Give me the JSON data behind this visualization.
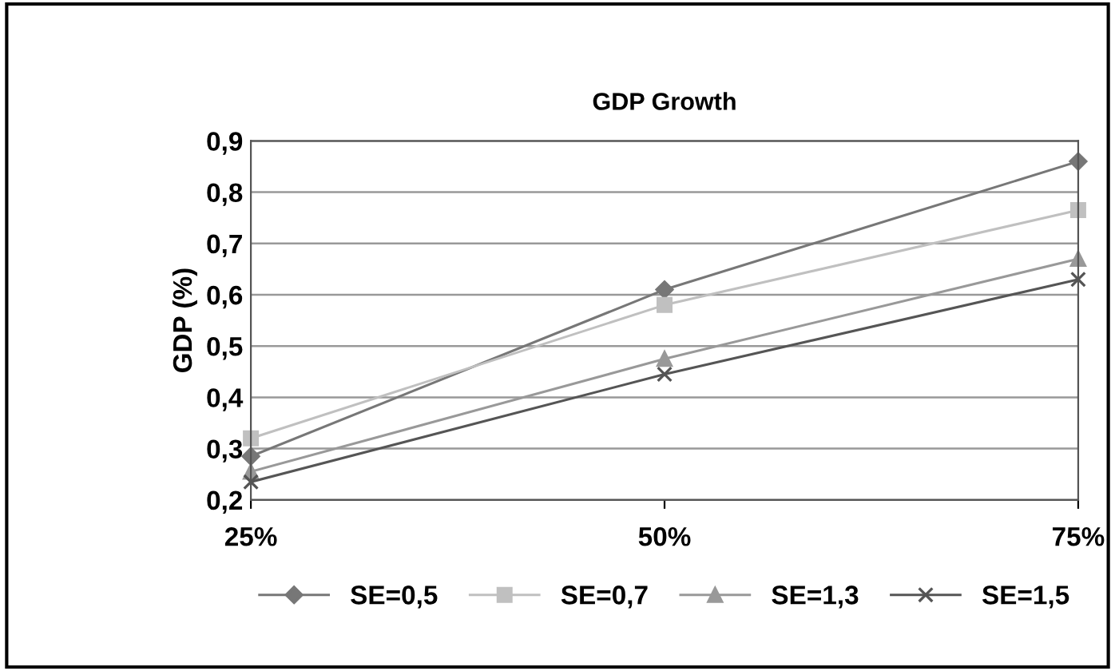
{
  "chart_data": {
    "type": "line",
    "title": "GDP Growth",
    "ylabel": "GDP (%)",
    "categories": [
      "25%",
      "50%",
      "75%"
    ],
    "series": [
      {
        "name": "SE=0,5",
        "color": "#777777",
        "marker": "diamond",
        "values": [
          0.285,
          0.61,
          0.86
        ]
      },
      {
        "name": "SE=0,7",
        "color": "#c0c0c0",
        "marker": "square",
        "values": [
          0.32,
          0.58,
          0.765
        ]
      },
      {
        "name": "SE=1,3",
        "color": "#999999",
        "marker": "triangle",
        "values": [
          0.255,
          0.475,
          0.67
        ]
      },
      {
        "name": "SE=1,5",
        "color": "#555555",
        "marker": "cross",
        "values": [
          0.235,
          0.445,
          0.63
        ]
      }
    ],
    "ylim": [
      0.2,
      0.9
    ],
    "yticks": [
      {
        "value": 0.2,
        "label": "0,2"
      },
      {
        "value": 0.3,
        "label": "0,3"
      },
      {
        "value": 0.4,
        "label": "0,4"
      },
      {
        "value": 0.5,
        "label": "0,5"
      },
      {
        "value": 0.6,
        "label": "0,6"
      },
      {
        "value": 0.7,
        "label": "0,7"
      },
      {
        "value": 0.8,
        "label": "0,8"
      },
      {
        "value": 0.9,
        "label": "0,9"
      }
    ],
    "grid": "y",
    "legend": "bottom",
    "line_style": "solid"
  }
}
